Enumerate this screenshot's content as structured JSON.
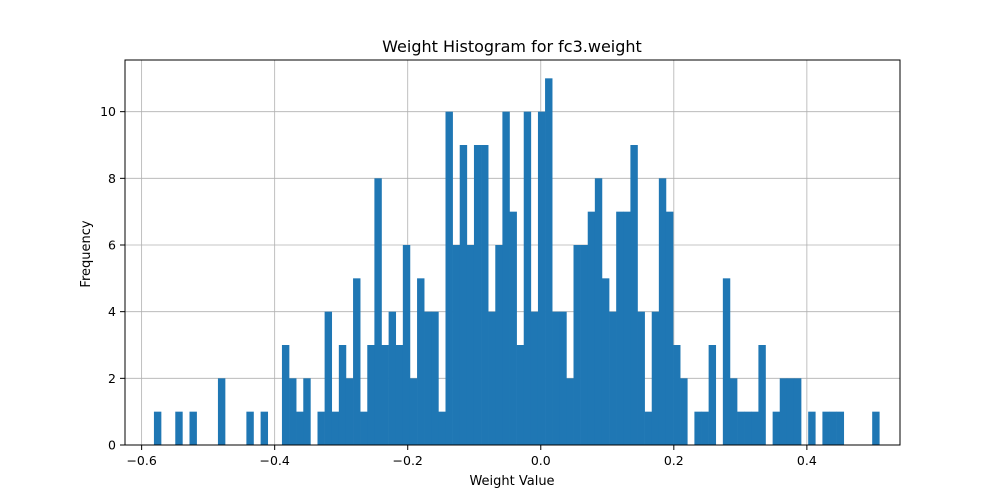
{
  "chart_data": {
    "type": "bar",
    "title": "Weight Histogram for fc3.weight",
    "xlabel": "Weight Value",
    "ylabel": "Frequency",
    "xlim": [
      -0.625,
      0.54
    ],
    "ylim": [
      0,
      11.55
    ],
    "xticks": [
      -0.6,
      -0.4,
      -0.2,
      0.0,
      0.2,
      0.4
    ],
    "xtick_labels": [
      "−0.6",
      "−0.4",
      "−0.2",
      "0.0",
      "0.2",
      "0.4"
    ],
    "yticks": [
      0,
      2,
      4,
      6,
      8,
      10
    ],
    "ytick_labels": [
      "0",
      "2",
      "4",
      "6",
      "8",
      "10"
    ],
    "grid": true,
    "color": "#1f77b4",
    "bin_start": -0.5815,
    "bin_width": 0.01069,
    "values": [
      1,
      0,
      0,
      1,
      0,
      1,
      0,
      0,
      0,
      2,
      0,
      0,
      0,
      1,
      0,
      1,
      0,
      0,
      3,
      2,
      1,
      2,
      0,
      1,
      4,
      1,
      3,
      2,
      5,
      1,
      3,
      8,
      3,
      4,
      3,
      6,
      2,
      5,
      4,
      4,
      1,
      10,
      6,
      9,
      6,
      9,
      9,
      4,
      6,
      10,
      7,
      3,
      10,
      4,
      10,
      11,
      4,
      4,
      2,
      6,
      6,
      7,
      8,
      5,
      4,
      7,
      7,
      9,
      4,
      1,
      4,
      8,
      7,
      3,
      2,
      0,
      1,
      1,
      3,
      0,
      5,
      2,
      1,
      1,
      1,
      3,
      0,
      1,
      2,
      2,
      2,
      0,
      1,
      0,
      1,
      1,
      1,
      0,
      0,
      0,
      0,
      1
    ]
  }
}
